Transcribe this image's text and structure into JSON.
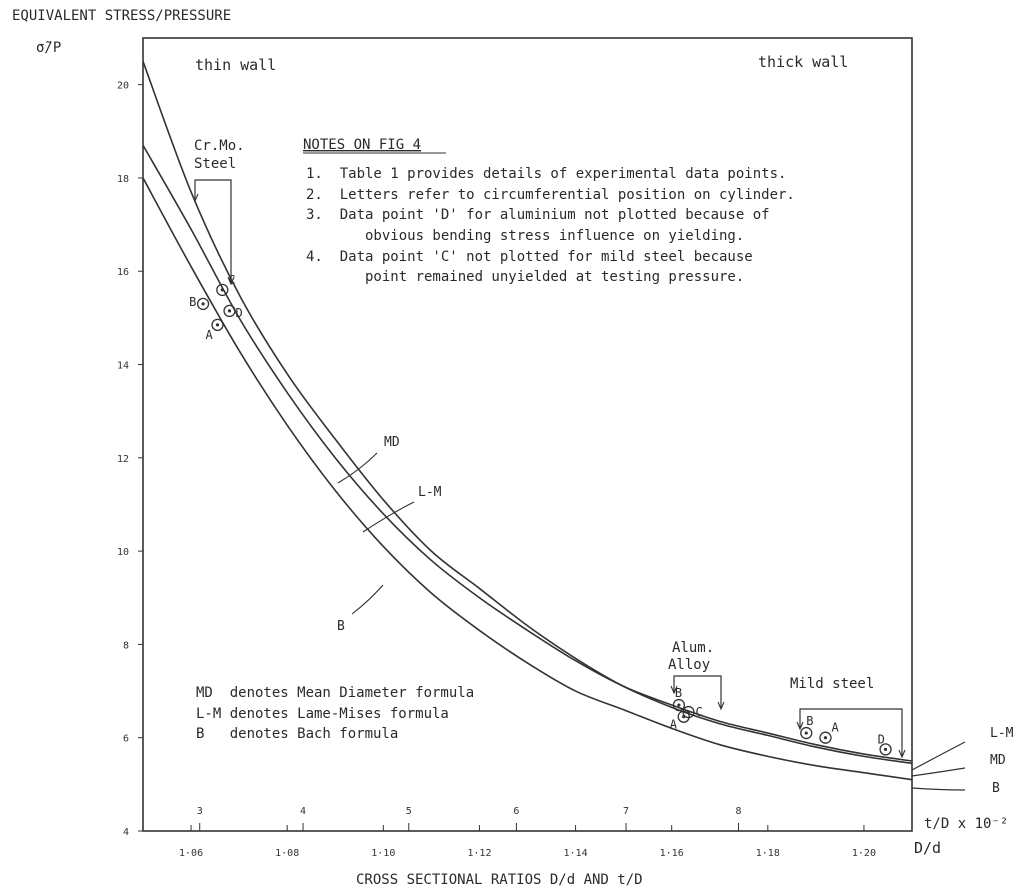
{
  "chart_data": {
    "type": "line",
    "title": "",
    "ylabel_line1": "EQUIVALENT STRESS/PRESSURE",
    "ylabel_line2": "σ̃/P",
    "xlabel": "CROSS SECTIONAL RATIOS D/d AND t/D",
    "x_axis_title": "D/d",
    "x2_axis_title": "t/D x 10⁻²",
    "xlim": [
      1.05,
      1.21
    ],
    "ylim": [
      4,
      21
    ],
    "x_ticks": [
      {
        "value": 1.06,
        "label": "1·06"
      },
      {
        "value": 1.08,
        "label": "1·08"
      },
      {
        "value": 1.1,
        "label": "1·10"
      },
      {
        "value": 1.12,
        "label": "1·12"
      },
      {
        "value": 1.14,
        "label": "1·14"
      },
      {
        "value": 1.16,
        "label": "1·16"
      },
      {
        "value": 1.18,
        "label": "1·18"
      },
      {
        "value": 1.2,
        "label": "1·20"
      }
    ],
    "y_ticks": [
      {
        "value": 4,
        "label": "4"
      },
      {
        "value": 6,
        "label": "6"
      },
      {
        "value": 8,
        "label": "8"
      },
      {
        "value": 10,
        "label": "10"
      },
      {
        "value": 12,
        "label": "12"
      },
      {
        "value": 14,
        "label": "14"
      },
      {
        "value": 16,
        "label": "16"
      },
      {
        "value": 18,
        "label": "18"
      },
      {
        "value": 20,
        "label": "20"
      }
    ],
    "secondary_ticks": [
      {
        "value": 1.0618,
        "label": "3"
      },
      {
        "value": 1.0833,
        "label": "4"
      },
      {
        "value": 1.1053,
        "label": "5"
      },
      {
        "value": 1.1277,
        "label": "6"
      },
      {
        "value": 1.1505,
        "label": "7"
      },
      {
        "value": 1.1739,
        "label": "8"
      }
    ],
    "series": [
      {
        "name": "MD",
        "curve_label": "MD",
        "end_label": "MD",
        "x": [
          1.05,
          1.06,
          1.07,
          1.08,
          1.09,
          1.1,
          1.11,
          1.12,
          1.13,
          1.14,
          1.15,
          1.16,
          1.17,
          1.18,
          1.19,
          1.2,
          1.21
        ],
        "y": [
          20.5,
          17.7,
          15.5,
          13.8,
          12.4,
          11.1,
          10.0,
          9.2,
          8.4,
          7.7,
          7.1,
          6.65,
          6.3,
          6.05,
          5.8,
          5.6,
          5.45
        ]
      },
      {
        "name": "L-M",
        "curve_label": "L-M",
        "end_label": "L-M",
        "x": [
          1.05,
          1.06,
          1.07,
          1.08,
          1.09,
          1.1,
          1.11,
          1.12,
          1.13,
          1.14,
          1.15,
          1.16,
          1.17,
          1.18,
          1.19,
          1.2,
          1.21
        ],
        "y": [
          18.7,
          16.9,
          15.0,
          13.4,
          12.0,
          10.8,
          9.8,
          9.0,
          8.3,
          7.65,
          7.1,
          6.7,
          6.35,
          6.1,
          5.85,
          5.65,
          5.5
        ]
      },
      {
        "name": "B",
        "curve_label": "B",
        "end_label": "B",
        "x": [
          1.05,
          1.06,
          1.07,
          1.08,
          1.09,
          1.1,
          1.11,
          1.12,
          1.13,
          1.14,
          1.15,
          1.16,
          1.17,
          1.18,
          1.19,
          1.2,
          1.21
        ],
        "y": [
          18.0,
          16.1,
          14.3,
          12.7,
          11.3,
          10.1,
          9.1,
          8.3,
          7.6,
          7.0,
          6.6,
          6.2,
          5.85,
          5.6,
          5.4,
          5.25,
          5.1
        ]
      }
    ],
    "data_points": [
      {
        "group": "Cr.Mo. Steel",
        "label": "C",
        "x": 1.0665,
        "y": 15.6
      },
      {
        "group": "Cr.Mo. Steel",
        "label": "B",
        "x": 1.0625,
        "y": 15.3
      },
      {
        "group": "Cr.Mo. Steel",
        "label": "D",
        "x": 1.068,
        "y": 15.15
      },
      {
        "group": "Cr.Mo. Steel",
        "label": "A",
        "x": 1.0655,
        "y": 14.85
      },
      {
        "group": "Alum. Alloy",
        "label": "B",
        "x": 1.1615,
        "y": 6.7
      },
      {
        "group": "Alum. Alloy",
        "label": "C",
        "x": 1.1635,
        "y": 6.55
      },
      {
        "group": "Alum. Alloy",
        "label": "A",
        "x": 1.1625,
        "y": 6.45
      },
      {
        "group": "Mild steel",
        "label": "B",
        "x": 1.188,
        "y": 6.1
      },
      {
        "group": "Mild steel",
        "label": "A",
        "x": 1.192,
        "y": 6.0
      },
      {
        "group": "Mild steel",
        "label": "D",
        "x": 1.2045,
        "y": 5.75
      }
    ],
    "region_labels": {
      "thin": "thin wall",
      "thick": "thick wall"
    },
    "groups": {
      "crmo": [
        "Cr.Mo.",
        "Steel"
      ],
      "alum": [
        "Alum.",
        "Alloy"
      ],
      "mild": [
        "Mild steel"
      ]
    },
    "notes": {
      "heading": "NOTES ON FIG 4",
      "lines": [
        "1.  Table 1 provides details of experimental data points.",
        "2.  Letters refer to circumferential position on cylinder.",
        "3.  Data point 'D' for aluminium not plotted because of",
        "       obvious bending stress influence on yielding.",
        "4.  Data point 'C' not plotted for mild steel because",
        "       point remained unyielded at testing pressure."
      ]
    },
    "legend": [
      "MD  denotes Mean Diameter formula",
      "L-M denotes Lame-Mises formula",
      "B   denotes Bach formula"
    ],
    "grid": false
  }
}
